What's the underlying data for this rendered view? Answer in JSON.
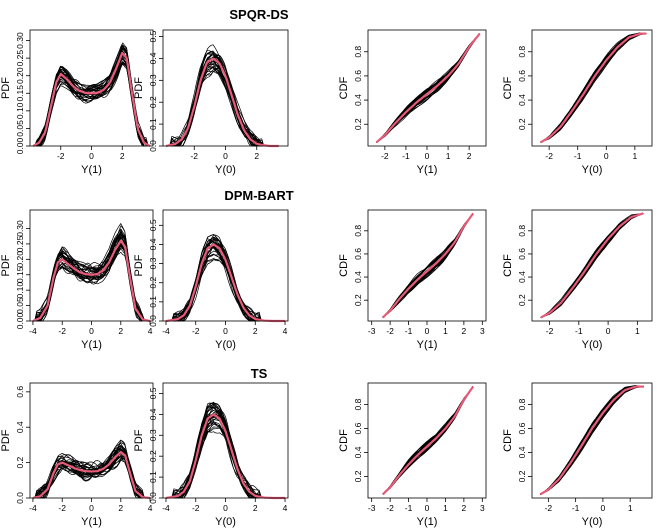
{
  "rows": [
    {
      "title": "SPQR-DS"
    },
    {
      "title": "DPM-BART"
    },
    {
      "title": "TS"
    }
  ],
  "colors": {
    "draws": "#000000",
    "truth": "#e85a78",
    "background": "#ffffff"
  },
  "chart_data": [
    {
      "id": "r0c0",
      "type": "line",
      "title": "",
      "xlabel": "Y(1)",
      "ylabel": "PDF",
      "xlim": [
        -4,
        4
      ],
      "ylim": [
        0,
        0.33
      ],
      "xticks": [
        -2,
        0,
        2
      ],
      "yticks": [
        0.0,
        0.05,
        0.1,
        0.15,
        0.2,
        0.25,
        0.3
      ],
      "series": [
        {
          "x": [
            -3.8,
            -3.4,
            -3.0,
            -2.6,
            -2.3,
            -2.0,
            -1.6,
            -1.2,
            -0.8,
            -0.4,
            0,
            0.4,
            0.8,
            1.2,
            1.6,
            2.0,
            2.3,
            2.6,
            3.0,
            3.4,
            3.8
          ],
          "y": [
            0.0,
            0.01,
            0.04,
            0.12,
            0.18,
            0.205,
            0.19,
            0.17,
            0.157,
            0.151,
            0.15,
            0.151,
            0.16,
            0.18,
            0.22,
            0.265,
            0.25,
            0.16,
            0.05,
            0.01,
            0.0
          ]
        }
      ]
    },
    {
      "id": "r0c1",
      "type": "line",
      "title": "",
      "xlabel": "Y(0)",
      "ylabel": "PDF",
      "xlim": [
        -4,
        4
      ],
      "ylim": [
        0,
        0.53
      ],
      "xticks": [
        -2,
        0,
        2
      ],
      "yticks": [
        0.0,
        0.1,
        0.2,
        0.3,
        0.4,
        0.5
      ],
      "series": [
        {
          "x": [
            -3.8,
            -3.2,
            -2.8,
            -2.4,
            -2.0,
            -1.6,
            -1.2,
            -0.8,
            -0.4,
            0,
            0.4,
            0.8,
            1.2,
            1.6,
            2.0,
            2.4,
            2.8,
            3.4
          ],
          "y": [
            0.0,
            0.01,
            0.03,
            0.08,
            0.18,
            0.3,
            0.38,
            0.4,
            0.38,
            0.32,
            0.23,
            0.14,
            0.07,
            0.03,
            0.01,
            0.004,
            0.0,
            0.0
          ]
        }
      ]
    },
    {
      "id": "r0c2",
      "type": "line",
      "title": "",
      "xlabel": "Y(1)",
      "ylabel": "CDF",
      "xlim": [
        -2.8,
        2.8
      ],
      "ylim": [
        0.02,
        0.98
      ],
      "xticks": [
        -2,
        -1,
        0,
        1,
        2
      ],
      "yticks": [
        0.2,
        0.4,
        0.6,
        0.8
      ],
      "series": [
        {
          "x": [
            -2.4,
            -2.0,
            -1.5,
            -1.0,
            -0.5,
            0,
            0.5,
            1.0,
            1.5,
            2.0,
            2.5
          ],
          "y": [
            0.05,
            0.11,
            0.21,
            0.3,
            0.38,
            0.45,
            0.52,
            0.6,
            0.7,
            0.84,
            0.95
          ]
        }
      ]
    },
    {
      "id": "r0c3",
      "type": "line",
      "title": "",
      "xlabel": "Y(0)",
      "ylabel": "CDF",
      "xlim": [
        -2.6,
        1.6
      ],
      "ylim": [
        0.02,
        0.98
      ],
      "xticks": [
        -2,
        -1,
        0,
        1
      ],
      "yticks": [
        0.2,
        0.4,
        0.6,
        0.8
      ],
      "series": [
        {
          "x": [
            -2.3,
            -2.0,
            -1.6,
            -1.2,
            -0.8,
            -0.4,
            0,
            0.4,
            0.8,
            1.2,
            1.4
          ],
          "y": [
            0.05,
            0.09,
            0.18,
            0.31,
            0.45,
            0.6,
            0.73,
            0.84,
            0.92,
            0.95,
            0.95
          ]
        }
      ]
    },
    {
      "id": "r1c0",
      "type": "line",
      "title": "",
      "xlabel": "Y(1)",
      "ylabel": "PDF",
      "xlim": [
        -4.2,
        4.2
      ],
      "ylim": [
        0,
        0.36
      ],
      "xticks": [
        -4,
        -2,
        0,
        2,
        4
      ],
      "yticks": [
        0.0,
        0.05,
        0.1,
        0.15,
        0.2,
        0.25,
        0.3
      ],
      "series": [
        {
          "x": [
            -4.0,
            -3.5,
            -3.0,
            -2.6,
            -2.3,
            -2.0,
            -1.6,
            -1.2,
            -0.8,
            -0.4,
            0,
            0.4,
            0.8,
            1.2,
            1.6,
            2.0,
            2.3,
            2.6,
            3.0,
            3.5,
            4.0
          ],
          "y": [
            0.0,
            0.01,
            0.05,
            0.14,
            0.19,
            0.2,
            0.185,
            0.17,
            0.158,
            0.152,
            0.15,
            0.152,
            0.165,
            0.19,
            0.23,
            0.26,
            0.24,
            0.15,
            0.04,
            0.005,
            0.0
          ]
        }
      ]
    },
    {
      "id": "r1c1",
      "type": "line",
      "title": "",
      "xlabel": "Y(0)",
      "ylabel": "PDF",
      "xlim": [
        -4.2,
        4.2
      ],
      "ylim": [
        0,
        0.58
      ],
      "xticks": [
        -4,
        -2,
        0,
        2,
        4
      ],
      "yticks": [
        0.0,
        0.1,
        0.2,
        0.3,
        0.4,
        0.5
      ],
      "series": [
        {
          "x": [
            -4.0,
            -3.2,
            -2.8,
            -2.4,
            -2.0,
            -1.6,
            -1.2,
            -0.8,
            -0.4,
            0,
            0.4,
            0.8,
            1.2,
            1.6,
            2.0,
            2.6,
            3.2,
            4.0
          ],
          "y": [
            0.0,
            0.01,
            0.03,
            0.08,
            0.18,
            0.3,
            0.38,
            0.4,
            0.38,
            0.32,
            0.23,
            0.14,
            0.07,
            0.03,
            0.01,
            0.002,
            0.0,
            0.0
          ]
        }
      ]
    },
    {
      "id": "r1c2",
      "type": "line",
      "title": "",
      "xlabel": "Y(1)",
      "ylabel": "CDF",
      "xlim": [
        -3.2,
        3.2
      ],
      "ylim": [
        0.02,
        0.98
      ],
      "xticks": [
        -3,
        -2,
        -1,
        0,
        1,
        2,
        3
      ],
      "yticks": [
        0.2,
        0.4,
        0.6,
        0.8
      ],
      "series": [
        {
          "x": [
            -2.4,
            -2.0,
            -1.5,
            -1.0,
            -0.5,
            0,
            0.5,
            1.0,
            1.5,
            2.0,
            2.5
          ],
          "y": [
            0.05,
            0.11,
            0.21,
            0.3,
            0.38,
            0.45,
            0.52,
            0.6,
            0.7,
            0.84,
            0.95
          ]
        }
      ]
    },
    {
      "id": "r1c3",
      "type": "line",
      "title": "",
      "xlabel": "Y(0)",
      "ylabel": "CDF",
      "xlim": [
        -2.6,
        1.5
      ],
      "ylim": [
        0.02,
        0.98
      ],
      "xticks": [
        -2,
        -1,
        0,
        1
      ],
      "yticks": [
        0.2,
        0.4,
        0.6,
        0.8
      ],
      "series": [
        {
          "x": [
            -2.3,
            -2.0,
            -1.6,
            -1.2,
            -0.8,
            -0.4,
            0,
            0.4,
            0.8,
            1.2
          ],
          "y": [
            0.05,
            0.09,
            0.18,
            0.31,
            0.45,
            0.6,
            0.73,
            0.84,
            0.92,
            0.95
          ]
        }
      ]
    },
    {
      "id": "r2c0",
      "type": "line",
      "title": "",
      "xlabel": "Y(1)",
      "ylabel": "PDF",
      "xlim": [
        -4.2,
        4.2
      ],
      "ylim": [
        0,
        0.65
      ],
      "xticks": [
        -4,
        -2,
        0,
        2,
        4
      ],
      "yticks": [
        0.0,
        0.2,
        0.4,
        0.6
      ],
      "series": [
        {
          "x": [
            -4.0,
            -3.5,
            -3.0,
            -2.6,
            -2.3,
            -2.0,
            -1.6,
            -1.2,
            -0.8,
            -0.4,
            0,
            0.4,
            0.8,
            1.2,
            1.6,
            2.0,
            2.3,
            2.6,
            3.0,
            3.5,
            4.0
          ],
          "y": [
            0.0,
            0.01,
            0.05,
            0.14,
            0.19,
            0.2,
            0.185,
            0.17,
            0.158,
            0.152,
            0.15,
            0.152,
            0.165,
            0.19,
            0.23,
            0.26,
            0.24,
            0.15,
            0.04,
            0.005,
            0.0
          ]
        }
      ]
    },
    {
      "id": "r2c1",
      "type": "line",
      "title": "",
      "xlabel": "Y(0)",
      "ylabel": "PDF",
      "xlim": [
        -4.2,
        4.2
      ],
      "ylim": [
        0,
        0.55
      ],
      "xticks": [
        -4,
        -2,
        0,
        2,
        4
      ],
      "yticks": [
        0.0,
        0.1,
        0.2,
        0.3,
        0.4,
        0.5
      ],
      "series": [
        {
          "x": [
            -4.0,
            -3.2,
            -2.8,
            -2.4,
            -2.0,
            -1.6,
            -1.2,
            -0.8,
            -0.4,
            0,
            0.4,
            0.8,
            1.2,
            1.6,
            2.0,
            2.6,
            3.2,
            4.0
          ],
          "y": [
            0.0,
            0.01,
            0.03,
            0.08,
            0.18,
            0.3,
            0.38,
            0.4,
            0.38,
            0.32,
            0.23,
            0.14,
            0.07,
            0.03,
            0.01,
            0.002,
            0.0,
            0.0
          ]
        }
      ]
    },
    {
      "id": "r2c2",
      "type": "line",
      "title": "",
      "xlabel": "Y(1)",
      "ylabel": "CDF",
      "xlim": [
        -3.2,
        3.2
      ],
      "ylim": [
        0.02,
        0.98
      ],
      "xticks": [
        -3,
        -2,
        -1,
        0,
        1,
        2,
        3
      ],
      "yticks": [
        0.2,
        0.4,
        0.6,
        0.8
      ],
      "series": [
        {
          "x": [
            -2.4,
            -2.0,
            -1.5,
            -1.0,
            -0.5,
            0,
            0.5,
            1.0,
            1.5,
            2.0,
            2.5
          ],
          "y": [
            0.05,
            0.11,
            0.21,
            0.3,
            0.38,
            0.45,
            0.52,
            0.6,
            0.7,
            0.84,
            0.95
          ]
        }
      ]
    },
    {
      "id": "r2c3",
      "type": "line",
      "title": "",
      "xlabel": "Y(0)",
      "ylabel": "CDF",
      "xlim": [
        -2.6,
        1.8
      ],
      "ylim": [
        0.02,
        0.98
      ],
      "xticks": [
        -2,
        -1,
        0,
        1
      ],
      "yticks": [
        0.2,
        0.4,
        0.6,
        0.8
      ],
      "series": [
        {
          "x": [
            -2.3,
            -2.0,
            -1.6,
            -1.2,
            -0.8,
            -0.4,
            0,
            0.4,
            0.8,
            1.2,
            1.5
          ],
          "y": [
            0.05,
            0.09,
            0.18,
            0.31,
            0.45,
            0.6,
            0.73,
            0.84,
            0.92,
            0.95,
            0.95
          ]
        }
      ]
    }
  ]
}
